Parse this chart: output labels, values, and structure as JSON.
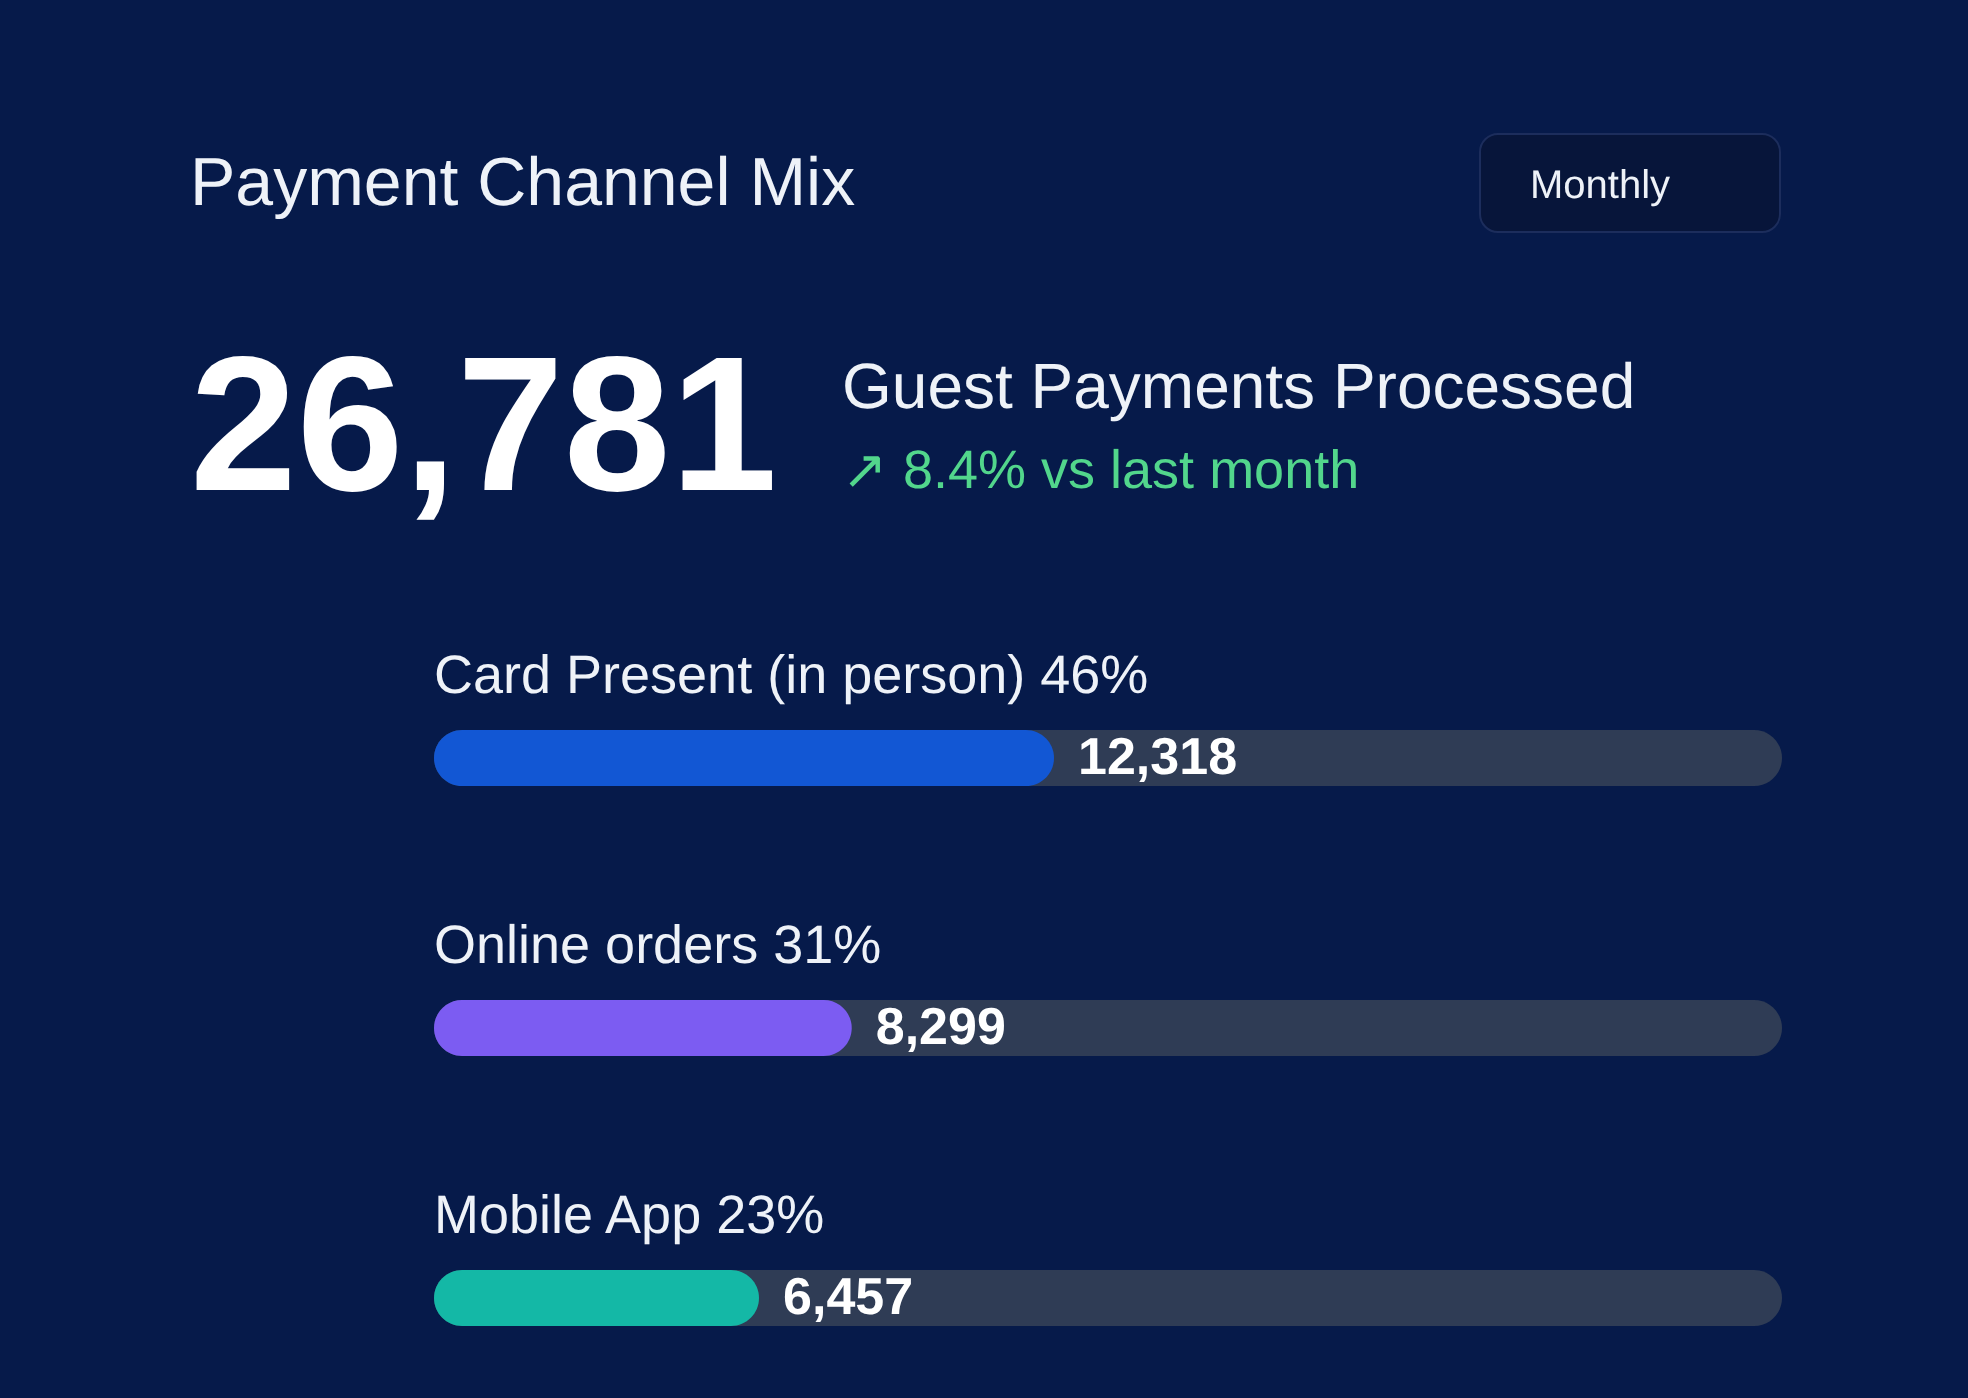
{
  "chart_data": {
    "type": "bar",
    "orientation": "horizontal",
    "title": "Payment Channel Mix",
    "categories": [
      "Card Present (in person) 46%",
      "Online orders 31%",
      "Mobile App 23%"
    ],
    "values": [
      12318,
      8299,
      6457
    ],
    "value_labels": [
      "12,318",
      "8,299",
      "6,457"
    ],
    "colors": [
      "#1257d4",
      "#7c5cf2",
      "#14b8a6"
    ],
    "xlim": [
      0,
      26781
    ],
    "tick_labels": "y",
    "annotations": [
      "Monthly",
      "26,781",
      "Guest Payments Processed",
      "↗ 8.4% vs last month"
    ]
  }
}
